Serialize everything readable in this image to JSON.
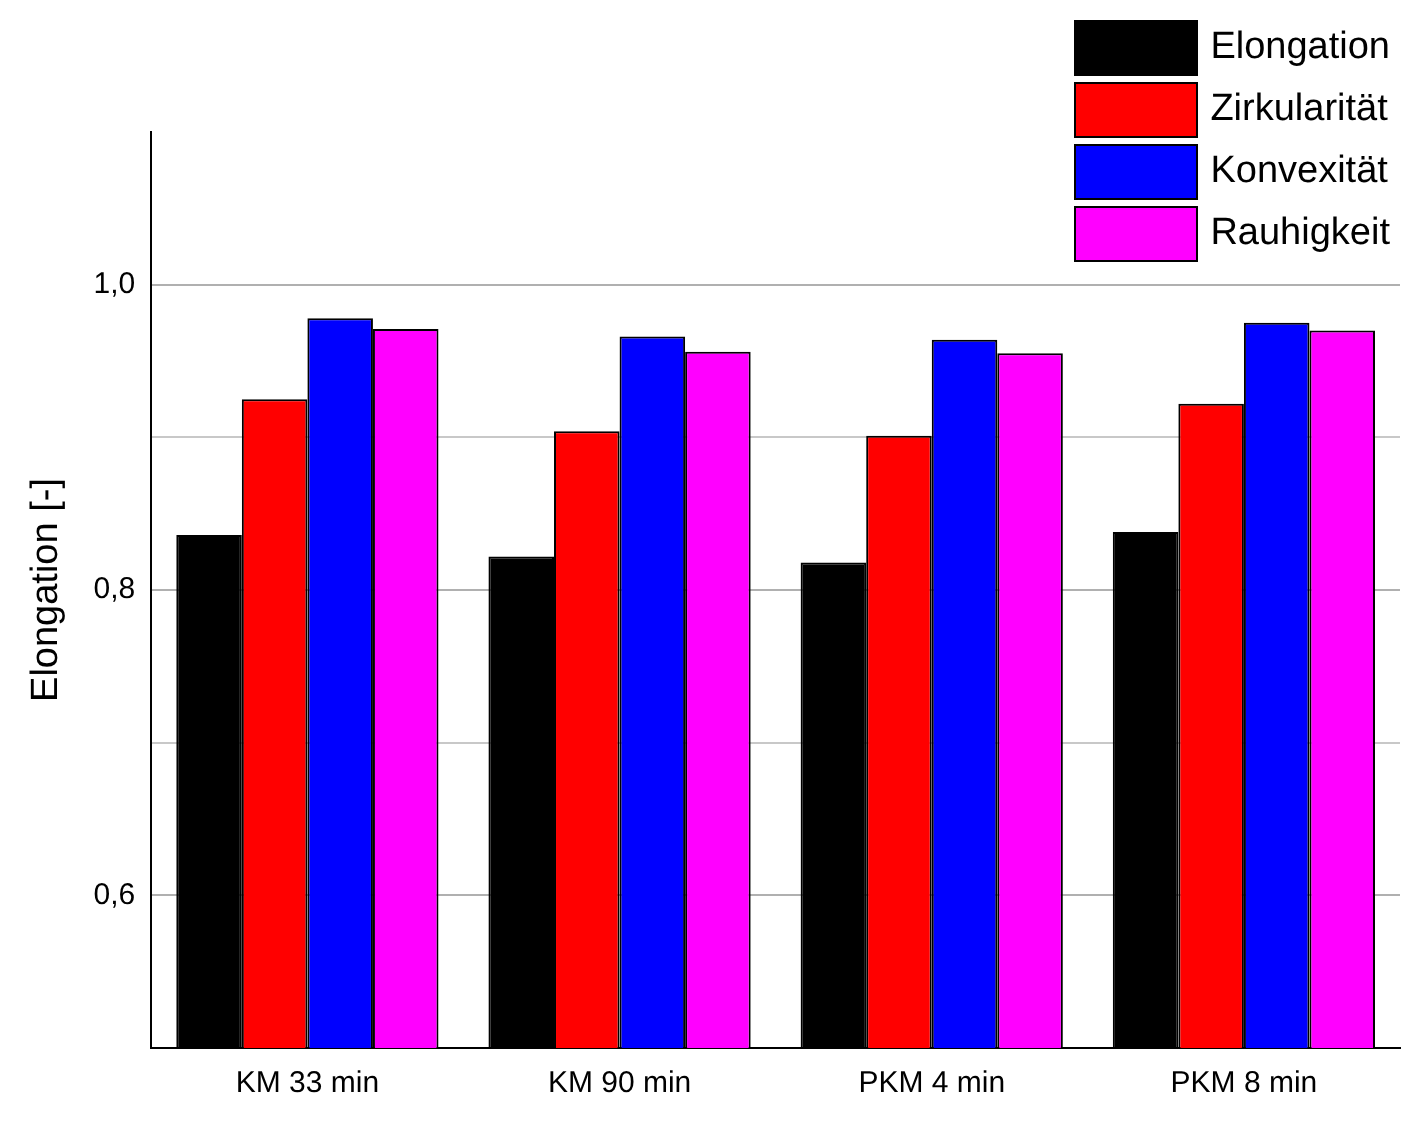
{
  "chart_data": {
    "type": "bar",
    "ylabel": "Elongation [-]",
    "categories": [
      "KM 33 min",
      "KM 90 min",
      "PKM 4 min",
      "PKM 8 min"
    ],
    "series": [
      {
        "name": "Elongation",
        "color": "#000000",
        "values": [
          0.836,
          0.822,
          0.818,
          0.838
        ]
      },
      {
        "name": "Zirkularität",
        "color": "#ff0000",
        "values": [
          0.925,
          0.904,
          0.901,
          0.922
        ]
      },
      {
        "name": "Konvexität",
        "color": "#0000ff",
        "values": [
          0.978,
          0.966,
          0.964,
          0.975
        ]
      },
      {
        "name": "Rauhigkeit",
        "color": "#ff00ff",
        "values": [
          0.971,
          0.956,
          0.955,
          0.97
        ]
      }
    ],
    "ylim": [
      0.5,
      1.1
    ],
    "yticks": [
      {
        "value": 0.5,
        "label": null
      },
      {
        "value": 0.6,
        "label": "0,6"
      },
      {
        "value": 0.7,
        "label": null
      },
      {
        "value": 0.8,
        "label": "0,8"
      },
      {
        "value": 0.9,
        "label": null
      },
      {
        "value": 1.0,
        "label": "1,0"
      }
    ],
    "grid": "y",
    "legend": "top right"
  }
}
